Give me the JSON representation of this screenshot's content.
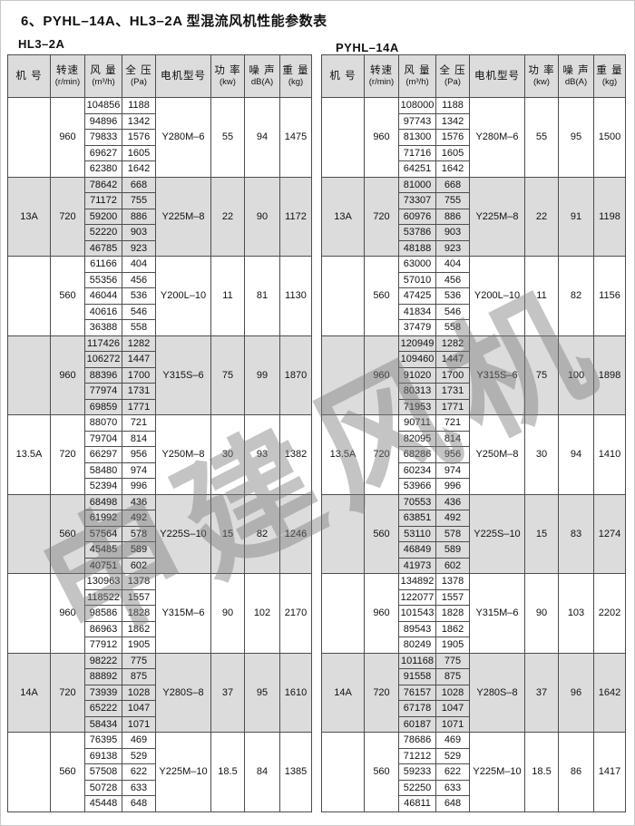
{
  "page": {
    "title": "6、PYHL–14A、HL3–2A 型混流风机性能参数表",
    "watermark": "申建风机"
  },
  "colors": {
    "band_gray": "#dcdcdc",
    "header_bg": "#dcdcdc",
    "border": "#4d4d4d",
    "watermark_gray": "#7d7d7d"
  },
  "columns": [
    {
      "key": "machine",
      "label": "机 号",
      "unit": ""
    },
    {
      "key": "speed",
      "label": "转速",
      "unit": "(r/min)"
    },
    {
      "key": "flow",
      "label": "风 量",
      "unit": "(m³/h)"
    },
    {
      "key": "pressure",
      "label": "全 压",
      "unit": "(Pa)"
    },
    {
      "key": "motor",
      "label": "电机型号",
      "unit": ""
    },
    {
      "key": "power",
      "label": "功 率",
      "unit": "(kw)"
    },
    {
      "key": "noise",
      "label": "噪 声",
      "unit": "dB(A)"
    },
    {
      "key": "weight",
      "label": "重 量",
      "unit": "(kg)"
    }
  ],
  "tables": [
    {
      "label": "HL3–2A",
      "machines": [
        {
          "name": "13A",
          "groups": [
            {
              "rpm": "960",
              "rows": [
                [
                  "104856",
                  "1188"
                ],
                [
                  "94896",
                  "1342"
                ],
                [
                  "79833",
                  "1576"
                ],
                [
                  "69627",
                  "1605"
                ],
                [
                  "62380",
                  "1642"
                ]
              ],
              "motor": "Y280M–6",
              "power": "55",
              "noise": "94",
              "weight": "1475"
            },
            {
              "rpm": "720",
              "rows": [
                [
                  "78642",
                  "668"
                ],
                [
                  "71172",
                  "755"
                ],
                [
                  "59200",
                  "886"
                ],
                [
                  "52220",
                  "903"
                ],
                [
                  "46785",
                  "923"
                ]
              ],
              "motor": "Y225M–8",
              "power": "22",
              "noise": "90",
              "weight": "1172"
            },
            {
              "rpm": "560",
              "rows": [
                [
                  "61166",
                  "404"
                ],
                [
                  "55356",
                  "456"
                ],
                [
                  "46044",
                  "536"
                ],
                [
                  "40616",
                  "546"
                ],
                [
                  "36388",
                  "558"
                ]
              ],
              "motor": "Y200L–10",
              "power": "11",
              "noise": "81",
              "weight": "1130"
            }
          ]
        },
        {
          "name": "13.5A",
          "groups": [
            {
              "rpm": "960",
              "rows": [
                [
                  "117426",
                  "1282"
                ],
                [
                  "106272",
                  "1447"
                ],
                [
                  "88396",
                  "1700"
                ],
                [
                  "77974",
                  "1731"
                ],
                [
                  "69859",
                  "1771"
                ]
              ],
              "motor": "Y315S–6",
              "power": "75",
              "noise": "99",
              "weight": "1870"
            },
            {
              "rpm": "720",
              "rows": [
                [
                  "88070",
                  "721"
                ],
                [
                  "79704",
                  "814"
                ],
                [
                  "66297",
                  "956"
                ],
                [
                  "58480",
                  "974"
                ],
                [
                  "52394",
                  "996"
                ]
              ],
              "motor": "Y250M–8",
              "power": "30",
              "noise": "93",
              "weight": "1382"
            },
            {
              "rpm": "560",
              "rows": [
                [
                  "68498",
                  "436"
                ],
                [
                  "61992",
                  "492"
                ],
                [
                  "57564",
                  "578"
                ],
                [
                  "45485",
                  "589"
                ],
                [
                  "40751",
                  "602"
                ]
              ],
              "motor": "Y225S–10",
              "power": "15",
              "noise": "82",
              "weight": "1246"
            }
          ]
        },
        {
          "name": "14A",
          "groups": [
            {
              "rpm": "960",
              "rows": [
                [
                  "130963",
                  "1378"
                ],
                [
                  "118522",
                  "1557"
                ],
                [
                  "98586",
                  "1828"
                ],
                [
                  "86963",
                  "1862"
                ],
                [
                  "77912",
                  "1905"
                ]
              ],
              "motor": "Y315M–6",
              "power": "90",
              "noise": "102",
              "weight": "2170"
            },
            {
              "rpm": "720",
              "rows": [
                [
                  "98222",
                  "775"
                ],
                [
                  "88892",
                  "875"
                ],
                [
                  "73939",
                  "1028"
                ],
                [
                  "65222",
                  "1047"
                ],
                [
                  "58434",
                  "1071"
                ]
              ],
              "motor": "Y280S–8",
              "power": "37",
              "noise": "95",
              "weight": "1610"
            },
            {
              "rpm": "560",
              "rows": [
                [
                  "76395",
                  "469"
                ],
                [
                  "69138",
                  "529"
                ],
                [
                  "57508",
                  "622"
                ],
                [
                  "50728",
                  "633"
                ],
                [
                  "45448",
                  "648"
                ]
              ],
              "motor": "Y225M–10",
              "power": "18.5",
              "noise": "84",
              "weight": "1385"
            }
          ]
        }
      ]
    },
    {
      "label": "PYHL–14A",
      "machines": [
        {
          "name": "13A",
          "groups": [
            {
              "rpm": "960",
              "rows": [
                [
                  "108000",
                  "1188"
                ],
                [
                  "97743",
                  "1342"
                ],
                [
                  "81300",
                  "1576"
                ],
                [
                  "71716",
                  "1605"
                ],
                [
                  "64251",
                  "1642"
                ]
              ],
              "motor": "Y280M–6",
              "power": "55",
              "noise": "95",
              "weight": "1500"
            },
            {
              "rpm": "720",
              "rows": [
                [
                  "81000",
                  "668"
                ],
                [
                  "73307",
                  "755"
                ],
                [
                  "60976",
                  "886"
                ],
                [
                  "53786",
                  "903"
                ],
                [
                  "48188",
                  "923"
                ]
              ],
              "motor": "Y225M–8",
              "power": "22",
              "noise": "91",
              "weight": "1198"
            },
            {
              "rpm": "560",
              "rows": [
                [
                  "63000",
                  "404"
                ],
                [
                  "57010",
                  "456"
                ],
                [
                  "47425",
                  "536"
                ],
                [
                  "41834",
                  "546"
                ],
                [
                  "37479",
                  "558"
                ]
              ],
              "motor": "Y200L–10",
              "power": "11",
              "noise": "82",
              "weight": "1156"
            }
          ]
        },
        {
          "name": "13.5A",
          "groups": [
            {
              "rpm": "960",
              "rows": [
                [
                  "120949",
                  "1282"
                ],
                [
                  "109460",
                  "1447"
                ],
                [
                  "91020",
                  "1700"
                ],
                [
                  "80313",
                  "1731"
                ],
                [
                  "71953",
                  "1771"
                ]
              ],
              "motor": "Y315S–6",
              "power": "75",
              "noise": "100",
              "weight": "1898"
            },
            {
              "rpm": "720",
              "rows": [
                [
                  "90711",
                  "721"
                ],
                [
                  "82095",
                  "814"
                ],
                [
                  "68286",
                  "956"
                ],
                [
                  "60234",
                  "974"
                ],
                [
                  "53966",
                  "996"
                ]
              ],
              "motor": "Y250M–8",
              "power": "30",
              "noise": "94",
              "weight": "1410"
            },
            {
              "rpm": "560",
              "rows": [
                [
                  "70553",
                  "436"
                ],
                [
                  "63851",
                  "492"
                ],
                [
                  "53110",
                  "578"
                ],
                [
                  "46849",
                  "589"
                ],
                [
                  "41973",
                  "602"
                ]
              ],
              "motor": "Y225S–10",
              "power": "15",
              "noise": "83",
              "weight": "1274"
            }
          ]
        },
        {
          "name": "14A",
          "groups": [
            {
              "rpm": "960",
              "rows": [
                [
                  "134892",
                  "1378"
                ],
                [
                  "122077",
                  "1557"
                ],
                [
                  "101543",
                  "1828"
                ],
                [
                  "89543",
                  "1862"
                ],
                [
                  "80249",
                  "1905"
                ]
              ],
              "motor": "Y315M–6",
              "power": "90",
              "noise": "103",
              "weight": "2202"
            },
            {
              "rpm": "720",
              "rows": [
                [
                  "101168",
                  "775"
                ],
                [
                  "91558",
                  "875"
                ],
                [
                  "76157",
                  "1028"
                ],
                [
                  "67178",
                  "1047"
                ],
                [
                  "60187",
                  "1071"
                ]
              ],
              "motor": "Y280S–8",
              "power": "37",
              "noise": "96",
              "weight": "1642"
            },
            {
              "rpm": "560",
              "rows": [
                [
                  "78686",
                  "469"
                ],
                [
                  "71212",
                  "529"
                ],
                [
                  "59233",
                  "622"
                ],
                [
                  "52250",
                  "633"
                ],
                [
                  "46811",
                  "648"
                ]
              ],
              "motor": "Y225M–10",
              "power": "18.5",
              "noise": "86",
              "weight": "1417"
            }
          ]
        }
      ]
    }
  ]
}
